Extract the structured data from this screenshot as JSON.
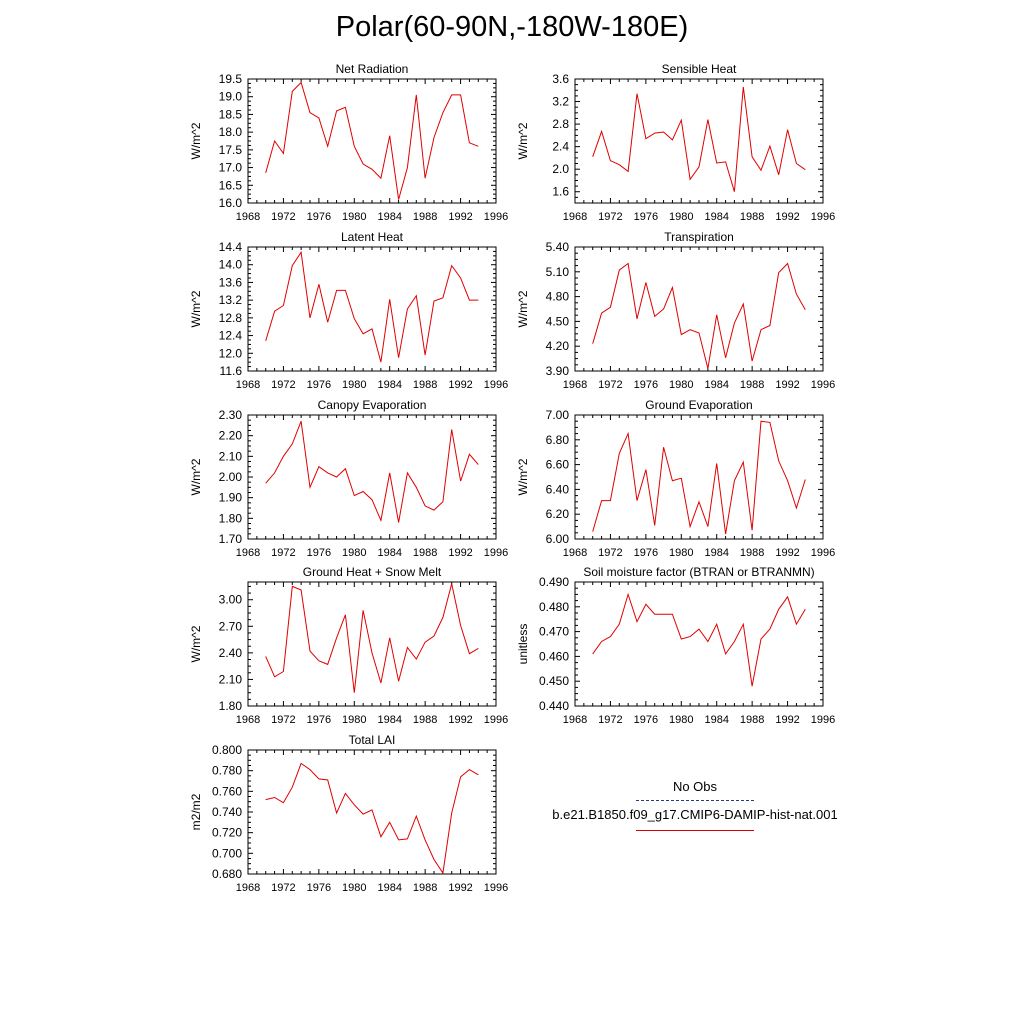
{
  "page": {
    "title": "Polar(60-90N,-180W-180E)"
  },
  "legend": {
    "obs_label": "No Obs",
    "model_label": "b.e21.B1850.f09_g17.CMIP6-DAMIP-hist-nat.001",
    "model_color": "#e00000",
    "obs_color": "#2b3a7f"
  },
  "chart_data": [
    {
      "type": "line",
      "title": "Net Radiation",
      "ylabel": "W/m^2",
      "xlim": [
        1968,
        1996
      ],
      "xticks": [
        1968,
        1972,
        1976,
        1980,
        1984,
        1988,
        1992,
        1996
      ],
      "ylim": [
        16.0,
        19.5
      ],
      "yticks": [
        "16.0",
        "16.5",
        "17.0",
        "17.5",
        "18.0",
        "18.5",
        "19.0",
        "19.5"
      ],
      "series": [
        {
          "color": "#e00000",
          "x": [
            1970,
            1971,
            1972,
            1973,
            1974,
            1975,
            1976,
            1977,
            1978,
            1979,
            1980,
            1981,
            1982,
            1983,
            1984,
            1985,
            1986,
            1987,
            1988,
            1989,
            1990,
            1991,
            1992,
            1993,
            1994
          ],
          "y": [
            16.85,
            17.75,
            17.4,
            19.15,
            19.4,
            18.55,
            18.4,
            17.6,
            18.6,
            18.7,
            17.6,
            17.1,
            16.95,
            16.7,
            17.9,
            16.1,
            17.0,
            19.05,
            16.7,
            17.85,
            18.55,
            19.05,
            19.05,
            17.7,
            17.6
          ]
        }
      ]
    },
    {
      "type": "line",
      "title": "Sensible Heat",
      "ylabel": "W/m^2",
      "xlim": [
        1968,
        1996
      ],
      "xticks": [
        1968,
        1972,
        1976,
        1980,
        1984,
        1988,
        1992,
        1996
      ],
      "ylim": [
        1.4,
        3.6
      ],
      "yticks": [
        "1.6",
        "2.0",
        "2.4",
        "2.8",
        "3.2",
        "3.6"
      ],
      "series": [
        {
          "color": "#e00000",
          "x": [
            1970,
            1971,
            1972,
            1973,
            1974,
            1975,
            1976,
            1977,
            1978,
            1979,
            1980,
            1981,
            1982,
            1983,
            1984,
            1985,
            1986,
            1987,
            1988,
            1989,
            1990,
            1991,
            1992,
            1993,
            1994
          ],
          "y": [
            2.22,
            2.67,
            2.15,
            2.08,
            1.96,
            3.34,
            2.54,
            2.64,
            2.66,
            2.52,
            2.87,
            1.82,
            2.04,
            2.88,
            2.11,
            2.13,
            1.6,
            3.46,
            2.22,
            1.98,
            2.41,
            1.9,
            2.7,
            2.1,
            1.99
          ]
        }
      ]
    },
    {
      "type": "line",
      "title": "Latent Heat",
      "ylabel": "W/m^2",
      "xlim": [
        1968,
        1996
      ],
      "xticks": [
        1968,
        1972,
        1976,
        1980,
        1984,
        1988,
        1992,
        1996
      ],
      "ylim": [
        11.6,
        14.4
      ],
      "yticks": [
        "11.6",
        "12.0",
        "12.4",
        "12.8",
        "13.2",
        "13.6",
        "14.0",
        "14.4"
      ],
      "series": [
        {
          "color": "#e00000",
          "x": [
            1970,
            1971,
            1972,
            1973,
            1974,
            1975,
            1976,
            1977,
            1978,
            1979,
            1980,
            1981,
            1982,
            1983,
            1984,
            1985,
            1986,
            1987,
            1988,
            1989,
            1990,
            1991,
            1992,
            1993,
            1994
          ],
          "y": [
            12.28,
            12.95,
            13.08,
            13.98,
            14.28,
            12.8,
            13.56,
            12.7,
            13.42,
            13.42,
            12.78,
            12.44,
            12.55,
            11.8,
            13.22,
            11.9,
            13.0,
            13.3,
            11.96,
            13.18,
            13.25,
            13.98,
            13.7,
            13.2,
            13.2
          ]
        }
      ]
    },
    {
      "type": "line",
      "title": "Transpiration",
      "ylabel": "W/m^2",
      "xlim": [
        1968,
        1996
      ],
      "xticks": [
        1968,
        1972,
        1976,
        1980,
        1984,
        1988,
        1992,
        1996
      ],
      "ylim": [
        3.9,
        5.4
      ],
      "yticks": [
        "3.90",
        "4.20",
        "4.50",
        "4.80",
        "5.10",
        "5.40"
      ],
      "series": [
        {
          "color": "#e00000",
          "x": [
            1970,
            1971,
            1972,
            1973,
            1974,
            1975,
            1976,
            1977,
            1978,
            1979,
            1980,
            1981,
            1982,
            1983,
            1984,
            1985,
            1986,
            1987,
            1988,
            1989,
            1990,
            1991,
            1992,
            1993,
            1994
          ],
          "y": [
            4.23,
            4.6,
            4.67,
            5.12,
            5.2,
            4.53,
            4.97,
            4.56,
            4.65,
            4.91,
            4.34,
            4.4,
            4.36,
            3.93,
            4.58,
            4.06,
            4.48,
            4.71,
            4.02,
            4.4,
            4.45,
            5.09,
            5.2,
            4.83,
            4.64
          ]
        }
      ]
    },
    {
      "type": "line",
      "title": "Canopy Evaporation",
      "ylabel": "W/m^2",
      "xlim": [
        1968,
        1996
      ],
      "xticks": [
        1968,
        1972,
        1976,
        1980,
        1984,
        1988,
        1992,
        1996
      ],
      "ylim": [
        1.7,
        2.3
      ],
      "yticks": [
        "1.70",
        "1.80",
        "1.90",
        "2.00",
        "2.10",
        "2.20",
        "2.30"
      ],
      "series": [
        {
          "color": "#e00000",
          "x": [
            1970,
            1971,
            1972,
            1973,
            1974,
            1975,
            1976,
            1977,
            1978,
            1979,
            1980,
            1981,
            1982,
            1983,
            1984,
            1985,
            1986,
            1987,
            1988,
            1989,
            1990,
            1991,
            1992,
            1993,
            1994
          ],
          "y": [
            1.97,
            2.02,
            2.1,
            2.16,
            2.27,
            1.95,
            2.05,
            2.02,
            2.0,
            2.04,
            1.91,
            1.93,
            1.89,
            1.79,
            2.02,
            1.78,
            2.02,
            1.95,
            1.86,
            1.84,
            1.88,
            2.23,
            1.98,
            2.11,
            2.06
          ]
        }
      ]
    },
    {
      "type": "line",
      "title": "Ground Evaporation",
      "ylabel": "W/m^2",
      "xlim": [
        1968,
        1996
      ],
      "xticks": [
        1968,
        1972,
        1976,
        1980,
        1984,
        1988,
        1992,
        1996
      ],
      "ylim": [
        6.0,
        7.0
      ],
      "yticks": [
        "6.00",
        "6.20",
        "6.40",
        "6.60",
        "6.80",
        "7.00"
      ],
      "series": [
        {
          "color": "#e00000",
          "x": [
            1970,
            1971,
            1972,
            1973,
            1974,
            1975,
            1976,
            1977,
            1978,
            1979,
            1980,
            1981,
            1982,
            1983,
            1984,
            1985,
            1986,
            1987,
            1988,
            1989,
            1990,
            1991,
            1992,
            1993,
            1994
          ],
          "y": [
            6.06,
            6.31,
            6.31,
            6.69,
            6.85,
            6.31,
            6.56,
            6.11,
            6.74,
            6.47,
            6.49,
            6.1,
            6.3,
            6.1,
            6.61,
            6.04,
            6.47,
            6.62,
            6.07,
            6.95,
            6.94,
            6.63,
            6.47,
            6.25,
            6.48
          ]
        }
      ]
    },
    {
      "type": "line",
      "title": "Ground Heat + Snow Melt",
      "ylabel": "W/m^2",
      "xlim": [
        1968,
        1996
      ],
      "xticks": [
        1968,
        1972,
        1976,
        1980,
        1984,
        1988,
        1992,
        1996
      ],
      "ylim": [
        1.8,
        3.2
      ],
      "yticks": [
        "1.80",
        "2.10",
        "2.40",
        "2.70",
        "3.00"
      ],
      "series": [
        {
          "color": "#e00000",
          "x": [
            1970,
            1971,
            1972,
            1973,
            1974,
            1975,
            1976,
            1977,
            1978,
            1979,
            1980,
            1981,
            1982,
            1983,
            1984,
            1985,
            1986,
            1987,
            1988,
            1989,
            1990,
            1991,
            1992,
            1993,
            1994
          ],
          "y": [
            2.36,
            2.13,
            2.19,
            3.15,
            3.11,
            2.42,
            2.31,
            2.27,
            2.57,
            2.83,
            1.95,
            2.88,
            2.4,
            2.06,
            2.57,
            2.08,
            2.46,
            2.33,
            2.52,
            2.59,
            2.8,
            3.18,
            2.71,
            2.39,
            2.45
          ]
        }
      ]
    },
    {
      "type": "line",
      "title": "Soil moisture factor (BTRAN or BTRANMN)",
      "ylabel": "unitless",
      "xlim": [
        1968,
        1996
      ],
      "xticks": [
        1968,
        1972,
        1976,
        1980,
        1984,
        1988,
        1992,
        1996
      ],
      "ylim": [
        0.44,
        0.49
      ],
      "yticks": [
        "0.440",
        "0.450",
        "0.460",
        "0.470",
        "0.480",
        "0.490"
      ],
      "series": [
        {
          "color": "#e00000",
          "x": [
            1970,
            1971,
            1972,
            1973,
            1974,
            1975,
            1976,
            1977,
            1978,
            1979,
            1980,
            1981,
            1982,
            1983,
            1984,
            1985,
            1986,
            1987,
            1988,
            1989,
            1990,
            1991,
            1992,
            1993,
            1994
          ],
          "y": [
            0.461,
            0.466,
            0.468,
            0.473,
            0.485,
            0.474,
            0.481,
            0.477,
            0.477,
            0.477,
            0.467,
            0.468,
            0.471,
            0.466,
            0.473,
            0.461,
            0.466,
            0.473,
            0.448,
            0.467,
            0.471,
            0.479,
            0.484,
            0.473,
            0.479
          ]
        }
      ]
    },
    {
      "type": "line",
      "title": "Total LAI",
      "ylabel": "m2/m2",
      "xlim": [
        1968,
        1996
      ],
      "xticks": [
        1968,
        1972,
        1976,
        1980,
        1984,
        1988,
        1992,
        1996
      ],
      "ylim": [
        0.68,
        0.8
      ],
      "yticks": [
        "0.680",
        "0.700",
        "0.720",
        "0.740",
        "0.760",
        "0.780",
        "0.800"
      ],
      "series": [
        {
          "color": "#e00000",
          "x": [
            1970,
            1971,
            1972,
            1973,
            1974,
            1975,
            1976,
            1977,
            1978,
            1979,
            1980,
            1981,
            1982,
            1983,
            1984,
            1985,
            1986,
            1987,
            1988,
            1989,
            1990,
            1991,
            1992,
            1993,
            1994
          ],
          "y": [
            0.752,
            0.754,
            0.749,
            0.764,
            0.787,
            0.781,
            0.772,
            0.771,
            0.739,
            0.758,
            0.747,
            0.738,
            0.742,
            0.716,
            0.73,
            0.713,
            0.714,
            0.736,
            0.713,
            0.694,
            0.681,
            0.739,
            0.774,
            0.781,
            0.776
          ]
        }
      ]
    }
  ]
}
